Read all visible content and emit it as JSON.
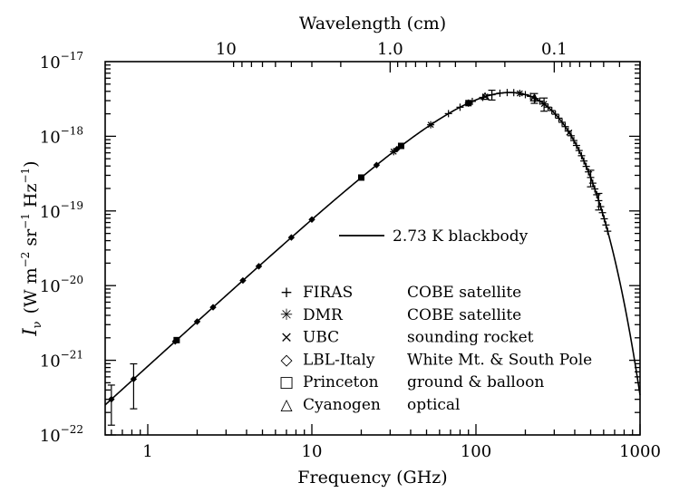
{
  "chart_data": {
    "type": "scatter",
    "title": "",
    "xlabel": "Frequency (GHz)",
    "ylabel_main": "I",
    "ylabel_sub": "ν",
    "ylabel_units": "(W m",
    "top_xlabel": "Wavelength (cm)",
    "xscale": "log",
    "yscale": "log",
    "xlim": [
      0.55,
      1000
    ],
    "ylim": [
      1e-22,
      1e-17
    ],
    "x_ticks": [
      {
        "value": 1,
        "label": "1"
      },
      {
        "value": 10,
        "label": "10"
      },
      {
        "value": 100,
        "label": "100"
      },
      {
        "value": 1000,
        "label": "1000"
      }
    ],
    "y_ticks": [
      {
        "exp": -22,
        "base": "10",
        "sup": "−22"
      },
      {
        "exp": -21,
        "base": "10",
        "sup": "−21"
      },
      {
        "exp": -20,
        "base": "10",
        "sup": "−20"
      },
      {
        "exp": -19,
        "base": "10",
        "sup": "−19"
      },
      {
        "exp": -18,
        "base": "10",
        "sup": "−18"
      },
      {
        "exp": -17,
        "base": "10",
        "sup": "−17"
      }
    ],
    "top_ticks": [
      {
        "wavelength_cm": 10,
        "label": "10"
      },
      {
        "wavelength_cm": 1.0,
        "label": "1.0"
      },
      {
        "wavelength_cm": 0.1,
        "label": "0.1"
      }
    ],
    "model": {
      "label": "2.73 K  blackbody",
      "temperature_K": 2.73
    },
    "legend": [
      {
        "symbol": "+",
        "instrument": "FIRAS",
        "platform": "COBE satellite"
      },
      {
        "symbol": "✳",
        "instrument": "DMR",
        "platform": "COBE satellite"
      },
      {
        "symbol": "×",
        "instrument": "UBC",
        "platform": "sounding rocket"
      },
      {
        "symbol": "◇",
        "instrument": "LBL-Italy",
        "platform": "White Mt. & South Pole"
      },
      {
        "symbol": "□",
        "instrument": "Princeton",
        "platform": "ground & balloon"
      },
      {
        "symbol": "△",
        "instrument": "Cyanogen",
        "platform": "optical"
      }
    ],
    "series": [
      {
        "name": "FIRAS",
        "marker": "plus",
        "x": [
          68,
          80,
          95,
          110,
          125,
          140,
          155,
          170,
          185,
          200,
          215,
          230,
          245,
          260,
          275,
          290,
          305,
          320,
          335,
          350,
          365,
          380,
          395,
          410,
          425,
          440,
          455,
          470,
          485,
          500,
          515,
          530,
          545,
          560,
          575,
          590,
          605,
          620,
          635
        ]
      },
      {
        "name": "DMR",
        "marker": "star",
        "x": [
          31.5,
          53,
          90
        ]
      },
      {
        "name": "UBC",
        "marker": "cross",
        "x": [
          114,
          185,
          260,
          370
        ]
      },
      {
        "name": "LBL-Italy",
        "marker": "diamond",
        "x": [
          0.6,
          0.82,
          1.47,
          2.0,
          2.5,
          3.8,
          4.75,
          7.5,
          10,
          24.8,
          33,
          90
        ]
      },
      {
        "name": "Princeton",
        "marker": "square",
        "x": [
          1.5,
          20,
          35,
          90
        ]
      },
      {
        "name": "Cyanogen",
        "marker": "triangle",
        "x": [
          113.6,
          227
        ]
      }
    ],
    "error_bars": [
      {
        "x": 0.6,
        "err_frac": 0.55
      },
      {
        "x": 0.82,
        "err_frac": 0.6
      },
      {
        "x": 125,
        "err_frac": 0.15
      },
      {
        "x": 227,
        "err_frac": 0.15
      },
      {
        "x": 260,
        "err_frac": 0.2
      },
      {
        "x": 500,
        "err_frac": 0.25
      },
      {
        "x": 560,
        "err_frac": 0.25
      }
    ]
  }
}
